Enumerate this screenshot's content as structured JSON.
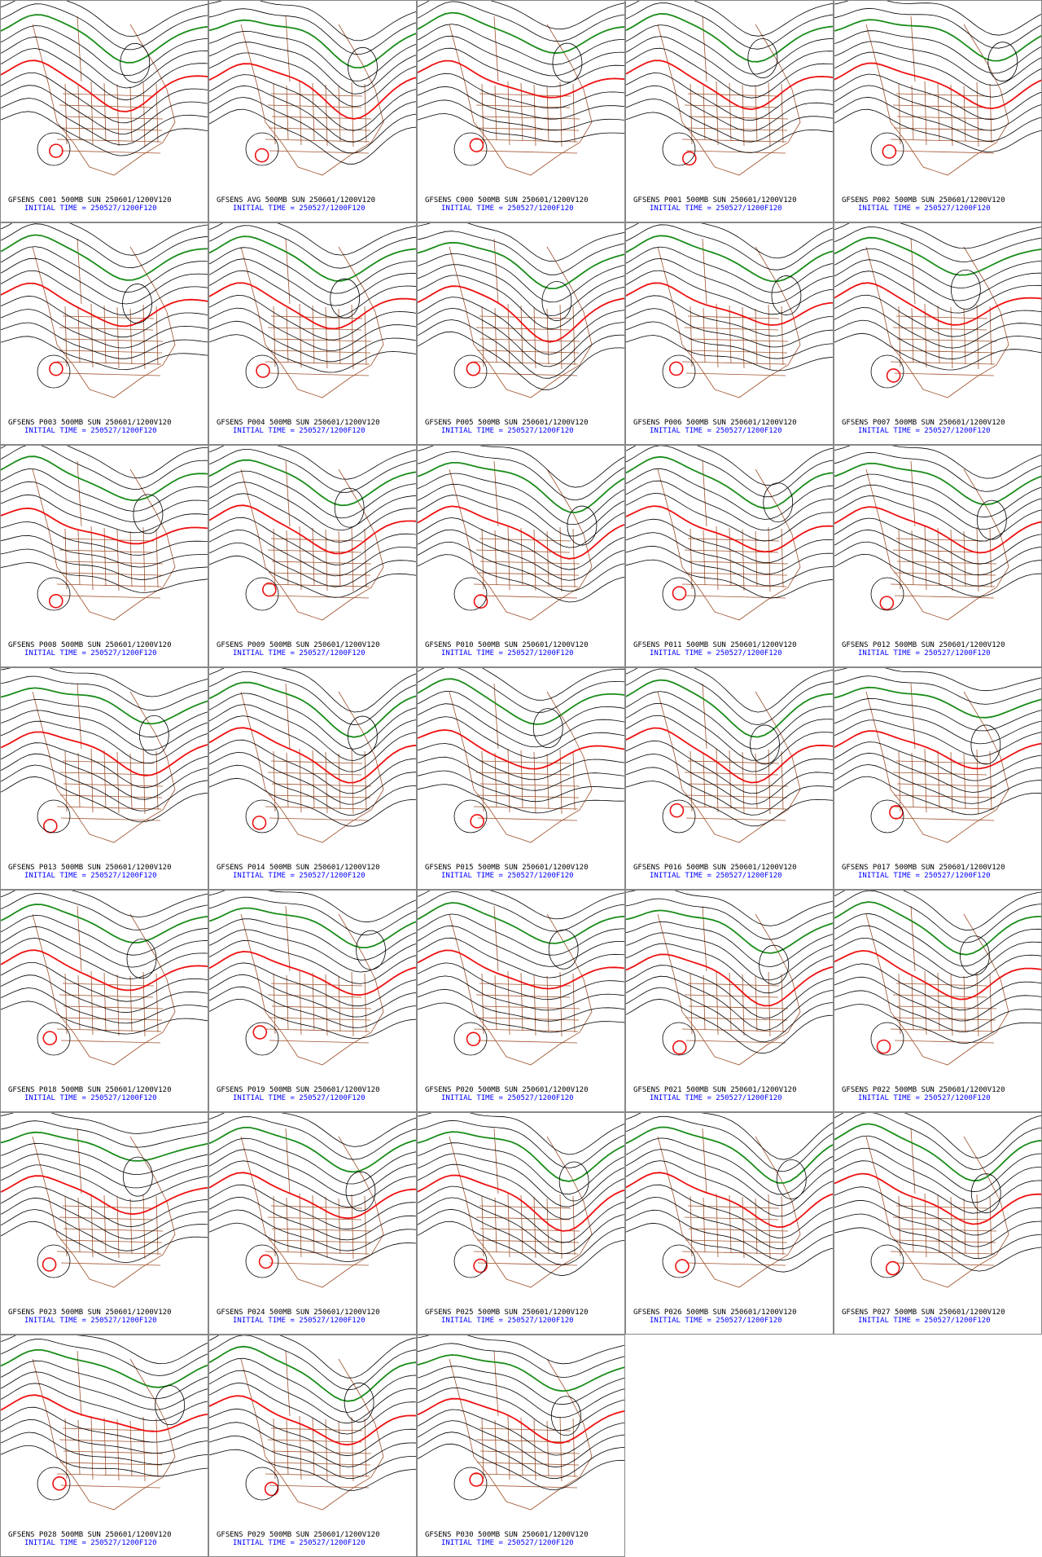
{
  "panels": [
    {
      "label": "GFSENS C001 500MB SUN 250601/1200V120",
      "initial_time": "INITIAL TIME = 250527/1200F120"
    },
    {
      "label": "GFSENS AVG 500MB SUN 250601/1200V120",
      "initial_time": "INITIAL TIME = 250527/1200F120"
    },
    {
      "label": "GFSENS C000 500MB SUN 250601/1200V120",
      "initial_time": "INITIAL TIME = 250527/1200F120"
    },
    {
      "label": "GFSENS P001 500MB SUN 250601/1200V120",
      "initial_time": "INITIAL TIME = 250527/1200F120"
    },
    {
      "label": "GFSENS P002 500MB SUN 250601/1200V120",
      "initial_time": "INITIAL TIME = 250527/1200F120"
    },
    {
      "label": "GFSENS P003 500MB SUN 250601/1200V120",
      "initial_time": "INITIAL TIME = 250527/1200F120"
    },
    {
      "label": "GFSENS P004 500MB SUN 250601/1200V120",
      "initial_time": "INITIAL TIME = 250527/1200F120"
    },
    {
      "label": "GFSENS P005 500MB SUN 250601/1200V120",
      "initial_time": "INITIAL TIME = 250527/1200F120"
    },
    {
      "label": "GFSENS P006 500MB SUN 250601/1200V120",
      "initial_time": "INITIAL TIME = 250527/1200F120"
    },
    {
      "label": "GFSENS P007 500MB SUN 250601/1200V120",
      "initial_time": "INITIAL TIME = 250527/1200F120"
    },
    {
      "label": "GFSENS P008 500MB SUN 250601/1200V120",
      "initial_time": "INITIAL TIME = 250527/1200F120"
    },
    {
      "label": "GFSENS P009 500MB SUN 250601/1200V120",
      "initial_time": "INITIAL TIME = 250527/1200F120"
    },
    {
      "label": "GFSENS P010 500MB SUN 250601/1200V120",
      "initial_time": "INITIAL TIME = 250527/1200F120"
    },
    {
      "label": "GFSENS P011 500MB SUN 250601/1200V120",
      "initial_time": "INITIAL TIME = 250527/1200F120"
    },
    {
      "label": "GFSENS P012 500MB SUN 250601/1200V120",
      "initial_time": "INITIAL TIME = 250527/1200F120"
    },
    {
      "label": "GFSENS P013 500MB SUN 250601/1200V120",
      "initial_time": "INITIAL TIME = 250527/1200F120"
    },
    {
      "label": "GFSENS P014 500MB SUN 250601/1200V120",
      "initial_time": "INITIAL TIME = 250527/1200F120"
    },
    {
      "label": "GFSENS P015 500MB SUN 250601/1200V120",
      "initial_time": "INITIAL TIME = 250527/1200F120"
    },
    {
      "label": "GFSENS P016 500MB SUN 250601/1200V120",
      "initial_time": "INITIAL TIME = 250527/1200F120"
    },
    {
      "label": "GFSENS P017 500MB SUN 250601/1200V120",
      "initial_time": "INITIAL TIME = 250527/1200F120"
    },
    {
      "label": "GFSENS P018 500MB SUN 250601/1200V120",
      "initial_time": "INITIAL TIME = 250527/1200F120"
    },
    {
      "label": "GFSENS P019 500MB SUN 250601/1200V120",
      "initial_time": "INITIAL TIME = 250527/1200F120"
    },
    {
      "label": "GFSENS P020 500MB SUN 250601/1200V120",
      "initial_time": "INITIAL TIME = 250527/1200F120"
    },
    {
      "label": "GFSENS P021 500MB SUN 250601/1200V120",
      "initial_time": "INITIAL TIME = 250527/1200F120"
    },
    {
      "label": "GFSENS P022 500MB SUN 250601/1200V120",
      "initial_time": "INITIAL TIME = 250527/1200F120"
    },
    {
      "label": "GFSENS P023 500MB SUN 250601/1200V120",
      "initial_time": "INITIAL TIME = 250527/1200F120"
    },
    {
      "label": "GFSENS P024 500MB SUN 250601/1200V120",
      "initial_time": "INITIAL TIME = 250527/1200F120"
    },
    {
      "label": "GFSENS P025 500MB SUN 250601/1200V120",
      "initial_time": "INITIAL TIME = 250527/1200F120"
    },
    {
      "label": "GFSENS P026 500MB SUN 250601/1200V120",
      "initial_time": "INITIAL TIME = 250527/1200F120"
    },
    {
      "label": "GFSENS P027 500MB SUN 250601/1200V120",
      "initial_time": "INITIAL TIME = 250527/1200F120"
    },
    {
      "label": "GFSENS P028 500MB SUN 250601/1200V120",
      "initial_time": "INITIAL TIME = 250527/1200F120"
    },
    {
      "label": "GFSENS P029 500MB SUN 250601/1200V120",
      "initial_time": "INITIAL TIME = 250527/1200F120"
    },
    {
      "label": "GFSENS P030 500MB SUN 250601/1200V120",
      "initial_time": "INITIAL TIME = 250527/1200F120"
    }
  ]
}
